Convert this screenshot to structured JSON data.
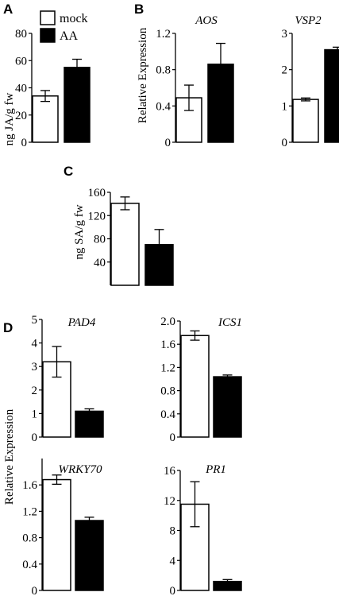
{
  "colors": {
    "mock": "#ffffff",
    "AA": "#000000",
    "stroke": "#000000"
  },
  "panel_labels": {
    "A": "A",
    "B": "B",
    "C": "C",
    "D": "D"
  },
  "legend": {
    "mock": "mock",
    "AA": "AA"
  },
  "ylabels": {
    "A": "ng JA/g fw",
    "B": "Relative Expression",
    "C": "ng SA/g fw",
    "D": "Relative Expression"
  },
  "chart_data": [
    {
      "id": "A",
      "type": "bar",
      "title": "",
      "ylabel": "ng JA/g fw",
      "categories": [
        "mock",
        "AA"
      ],
      "values": [
        34,
        55
      ],
      "errors": [
        4,
        6
      ],
      "ylim": [
        0,
        80
      ],
      "yticks": [
        "0",
        "20",
        "40",
        "60",
        "80"
      ]
    },
    {
      "id": "B1",
      "type": "bar",
      "title": "AOS",
      "ylabel": "Relative Expression",
      "categories": [
        "mock",
        "AA"
      ],
      "values": [
        0.49,
        0.86
      ],
      "errors": [
        0.14,
        0.23
      ],
      "ylim": [
        0,
        1.2
      ],
      "yticks": [
        "0",
        "0.4",
        "0.8",
        "1.2"
      ]
    },
    {
      "id": "B2",
      "type": "bar",
      "title": "VSP2",
      "ylabel": "",
      "categories": [
        "mock",
        "AA"
      ],
      "values": [
        1.18,
        2.55
      ],
      "errors": [
        0.04,
        0.07
      ],
      "ylim": [
        0,
        3
      ],
      "yticks": [
        "0",
        "1",
        "2",
        "3"
      ]
    },
    {
      "id": "C",
      "type": "bar",
      "title": "",
      "ylabel": "ng SA/g fw",
      "categories": [
        "mock",
        "AA"
      ],
      "values": [
        141,
        70
      ],
      "errors": [
        11,
        26
      ],
      "ylim": [
        0,
        160
      ],
      "yticks": [
        "40",
        "80",
        "120",
        "160"
      ]
    },
    {
      "id": "D1",
      "type": "bar",
      "title": "PAD4",
      "ylabel": "",
      "categories": [
        "mock",
        "AA"
      ],
      "values": [
        3.2,
        1.1
      ],
      "errors": [
        0.65,
        0.1
      ],
      "ylim": [
        0,
        5
      ],
      "yticks": [
        "0",
        "1",
        "2",
        "3",
        "4",
        "5"
      ]
    },
    {
      "id": "D2",
      "type": "bar",
      "title": "ICS1",
      "ylabel": "",
      "categories": [
        "mock",
        "AA"
      ],
      "values": [
        1.75,
        1.04
      ],
      "errors": [
        0.08,
        0.03
      ],
      "ylim": [
        0,
        2.0
      ],
      "yticks": [
        "0",
        "0.4",
        "0.8",
        "1.2",
        "1.6",
        "2.0"
      ]
    },
    {
      "id": "D3",
      "type": "bar",
      "title": "WRKY70",
      "ylabel": "",
      "categories": [
        "mock",
        "AA"
      ],
      "values": [
        1.68,
        1.06
      ],
      "errors": [
        0.07,
        0.05
      ],
      "ylim": [
        0,
        2.0
      ],
      "yticks": [
        "0",
        "0.4",
        "0.8",
        "1.2",
        "1.6"
      ]
    },
    {
      "id": "D4",
      "type": "bar",
      "title": "PR1",
      "ylabel": "",
      "categories": [
        "mock",
        "AA"
      ],
      "values": [
        11.5,
        1.2
      ],
      "errors": [
        3.0,
        0.25
      ],
      "ylim": [
        0,
        16
      ],
      "yticks": [
        "0",
        "4",
        "8",
        "12",
        "16"
      ]
    }
  ]
}
